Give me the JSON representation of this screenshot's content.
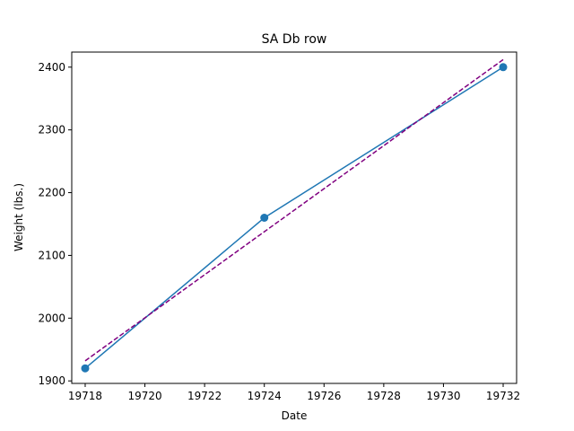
{
  "chart_data": {
    "type": "line",
    "title": "SA Db row",
    "xlabel": "Date",
    "ylabel": "Weight (lbs.)",
    "xlim": [
      19717.55,
      19732.45
    ],
    "ylim": [
      1896,
      2424
    ],
    "xticks": [
      19718,
      19720,
      19722,
      19724,
      19726,
      19728,
      19730,
      19732
    ],
    "yticks": [
      1900,
      2000,
      2100,
      2200,
      2300,
      2400
    ],
    "grid": false,
    "series": [
      {
        "style": "solid-with-markers",
        "color": "#1f77b4",
        "x": [
          19718,
          19724,
          19732
        ],
        "y": [
          1920,
          2160,
          2400
        ]
      },
      {
        "style": "dashed-trendline",
        "color": "#800080",
        "x": [
          19718,
          19732
        ],
        "y": [
          1932,
          2412
        ]
      }
    ]
  }
}
